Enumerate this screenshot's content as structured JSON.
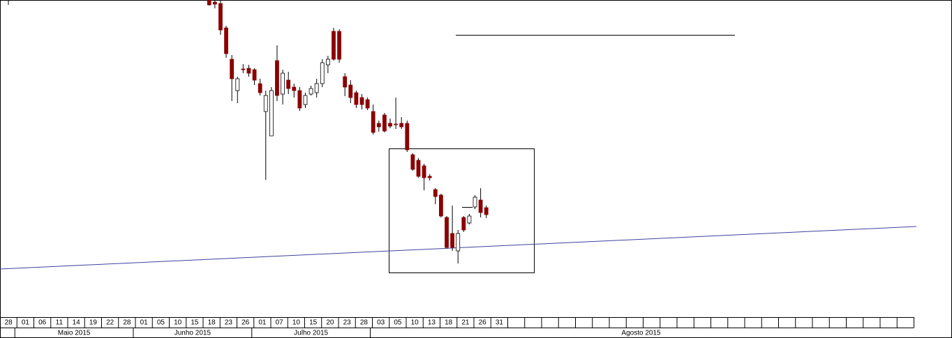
{
  "chart_data": {
    "type": "candlestick",
    "categories": [
      "28",
      "01",
      "06",
      "11",
      "14",
      "19",
      "22",
      "28",
      "01",
      "05",
      "10",
      "15",
      "18",
      "23",
      "26",
      "01",
      "07",
      "10",
      "15",
      "20",
      "23",
      "28",
      "03",
      "05",
      "10",
      "13",
      "18",
      "21",
      "26",
      "31"
    ],
    "months": [
      "Maio 2015",
      "Junho 2015",
      "Julho 2015",
      "Agosto 2015"
    ],
    "x": [
      0,
      1,
      2,
      3,
      4,
      5,
      6,
      7,
      8,
      9,
      10,
      11,
      12,
      13,
      14,
      15,
      16,
      17,
      18,
      19,
      20,
      21,
      22,
      23,
      24,
      25,
      26,
      27,
      28,
      29,
      30,
      31,
      32,
      33,
      34,
      35,
      36,
      37,
      38,
      39,
      40,
      41,
      42,
      43,
      44,
      45,
      46,
      47,
      48,
      49
    ],
    "open": [
      455,
      452,
      450,
      415,
      370,
      325,
      356,
      357,
      355,
      335,
      295,
      260,
      368,
      320,
      340,
      330,
      325,
      305,
      320,
      322,
      335,
      362,
      410,
      410,
      345,
      333,
      322,
      315,
      312,
      295,
      278,
      290,
      278,
      277,
      278,
      278,
      233,
      225,
      217,
      202,
      183,
      175,
      143,
      120,
      95,
      143,
      135,
      158,
      168,
      157
    ],
    "close": [
      448,
      449,
      412,
      378,
      342,
      342,
      355,
      350,
      340,
      322,
      318,
      325,
      318,
      350,
      328,
      325,
      300,
      318,
      328,
      335,
      365,
      370,
      370,
      370,
      330,
      315,
      305,
      305,
      300,
      265,
      273,
      267,
      274,
      276,
      273,
      240,
      212,
      202,
      200,
      200,
      173,
      145,
      100,
      100,
      120,
      125,
      145,
      172,
      150,
      147
    ],
    "high": [
      458,
      455,
      455,
      418,
      376,
      345,
      363,
      362,
      357,
      342,
      325,
      330,
      390,
      355,
      352,
      335,
      330,
      322,
      332,
      342,
      370,
      375,
      415,
      413,
      350,
      340,
      325,
      320,
      315,
      305,
      282,
      293,
      285,
      315,
      287,
      282,
      235,
      228,
      220,
      205,
      185,
      177,
      145,
      160,
      125,
      145,
      148,
      175,
      185,
      160
    ],
    "low": [
      447,
      443,
      405,
      372,
      310,
      307,
      350,
      345,
      333,
      318,
      197,
      260,
      310,
      305,
      320,
      315,
      296,
      300,
      318,
      315,
      330,
      350,
      368,
      365,
      317,
      307,
      300,
      298,
      297,
      262,
      266,
      265,
      271,
      270,
      270,
      237,
      210,
      200,
      182,
      196,
      162,
      143,
      98,
      95,
      77,
      122,
      133,
      155,
      143,
      142
    ],
    "xlim": [
      -37,
      124.7
    ],
    "ylim": [
      0,
      455
    ],
    "up_color": "#ffffff",
    "down_color": "#8b0000"
  }
}
